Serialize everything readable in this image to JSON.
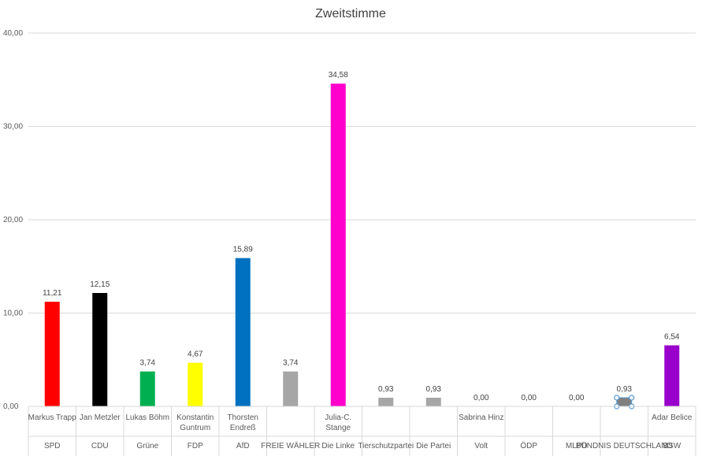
{
  "chart_data": {
    "type": "bar",
    "title": "Zweitstimme",
    "ylim": [
      0,
      40
    ],
    "yticks": [
      "0,00",
      "10,00",
      "20,00",
      "30,00",
      "40,00"
    ],
    "grid": true,
    "categories": [
      {
        "candidate": [
          "Markus Trapp"
        ],
        "party": "SPD",
        "value": 11.21,
        "label": "11,21",
        "color": "#ff0000"
      },
      {
        "candidate": [
          "Jan Metzler"
        ],
        "party": "CDU",
        "value": 12.15,
        "label": "12,15",
        "color": "#000000"
      },
      {
        "candidate": [
          "Lukas Böhm"
        ],
        "party": "Grüne",
        "value": 3.74,
        "label": "3,74",
        "color": "#00b050"
      },
      {
        "candidate": [
          "Konstantin",
          "Guntrum"
        ],
        "party": "FDP",
        "value": 4.67,
        "label": "4,67",
        "color": "#ffff00"
      },
      {
        "candidate": [
          "Thorsten",
          "Endreß"
        ],
        "party": "AfD",
        "value": 15.89,
        "label": "15,89",
        "color": "#0070c0"
      },
      {
        "candidate": [],
        "party": "FREIE WÄHLER",
        "value": 3.74,
        "label": "3,74",
        "color": "#a6a6a6"
      },
      {
        "candidate": [
          "Julia-C.",
          "Stange"
        ],
        "party": "Die Linke",
        "value": 34.58,
        "label": "34,58",
        "color": "#ff00cc"
      },
      {
        "candidate": [],
        "party": "Tierschutzpartei",
        "value": 0.93,
        "label": "0,93",
        "color": "#a6a6a6"
      },
      {
        "candidate": [],
        "party": "Die Partei",
        "value": 0.93,
        "label": "0,93",
        "color": "#a6a6a6"
      },
      {
        "candidate": [
          "Sabrina Hinz"
        ],
        "party": "Volt",
        "value": 0.0,
        "label": "0,00",
        "color": "#a6a6a6"
      },
      {
        "candidate": [],
        "party": "ÖDP",
        "value": 0.0,
        "label": "0,00",
        "color": "#a6a6a6"
      },
      {
        "candidate": [],
        "party": "MLPD",
        "value": 0.0,
        "label": "0,00",
        "color": "#a6a6a6"
      },
      {
        "candidate": [],
        "party": "BÜNDNIS DEUTSCHLAND",
        "value": 0.93,
        "label": "0,93",
        "color": "#808080",
        "selected": true
      },
      {
        "candidate": [
          "Adar Belice"
        ],
        "party": "BSW",
        "value": 6.54,
        "label": "6,54",
        "color": "#9900cc"
      }
    ]
  }
}
